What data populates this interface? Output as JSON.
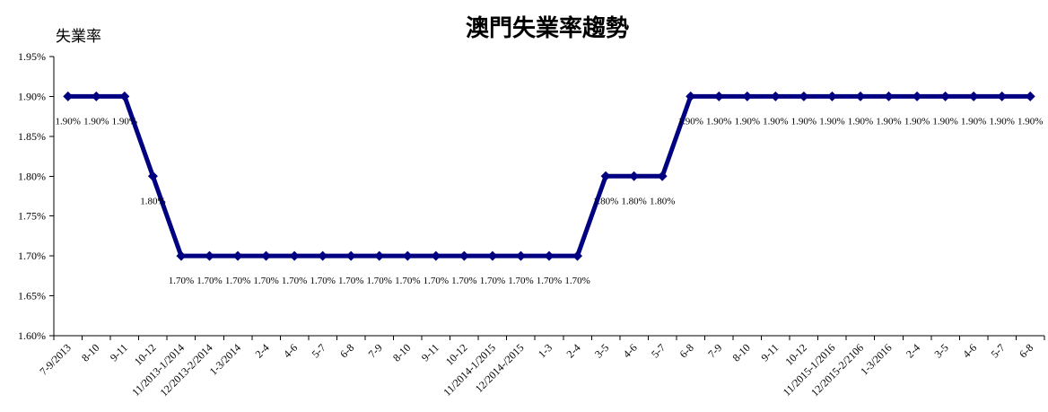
{
  "chart_data": {
    "type": "line",
    "title": "澳門失業率趨勢",
    "ylabel": "失業率",
    "xlabel": "",
    "ylim": [
      1.6,
      1.95
    ],
    "yticks": [
      "1.60%",
      "1.65%",
      "1.70%",
      "1.75%",
      "1.80%",
      "1.85%",
      "1.90%",
      "1.95%"
    ],
    "grid": false,
    "line_color": "#000080",
    "categories": [
      "7-9/2013",
      "8-10",
      "9-11",
      "10-12",
      "11/2013-1/2014",
      "12/2013-2/2014",
      "1-3/2014",
      "2-4",
      "4-6",
      "5-7",
      "6-8",
      "7-9",
      "8-10",
      "9-11",
      "10-12",
      "11/2014-1/2015",
      "12/2014-/2015",
      "1-3",
      "2-4",
      "3-5",
      "4-6",
      "5-7",
      "6-8",
      "7-9",
      "8-10",
      "9-11",
      "10-12",
      "11/2015-1/2016",
      "12/2015-2/2106",
      "1-3/2016",
      "2-4",
      "3-5",
      "4-6",
      "5-7",
      "6-8"
    ],
    "values": [
      1.9,
      1.9,
      1.9,
      1.8,
      1.7,
      1.7,
      1.7,
      1.7,
      1.7,
      1.7,
      1.7,
      1.7,
      1.7,
      1.7,
      1.7,
      1.7,
      1.7,
      1.7,
      1.7,
      1.8,
      1.8,
      1.8,
      1.9,
      1.9,
      1.9,
      1.9,
      1.9,
      1.9,
      1.9,
      1.9,
      1.9,
      1.9,
      1.9,
      1.9,
      1.9
    ],
    "data_labels": [
      "1.90%",
      "1.90%",
      "1.90%",
      "1.80%",
      "1.70%",
      "1.70%",
      "1.70%",
      "1.70%",
      "1.70%",
      "1.70%",
      "1.70%",
      "1.70%",
      "1.70%",
      "1.70%",
      "1.70%",
      "1.70%",
      "1.70%",
      "1.70%",
      "1.70%",
      "1.80%",
      "1.80%",
      "1.80%",
      "1.90%",
      "1.90%",
      "1.90%",
      "1.90%",
      "1.90%",
      "1.90%",
      "1.90%",
      "1.90%",
      "1.90%",
      "1.90%",
      "1.90%",
      "1.90%",
      "1.90%"
    ]
  }
}
